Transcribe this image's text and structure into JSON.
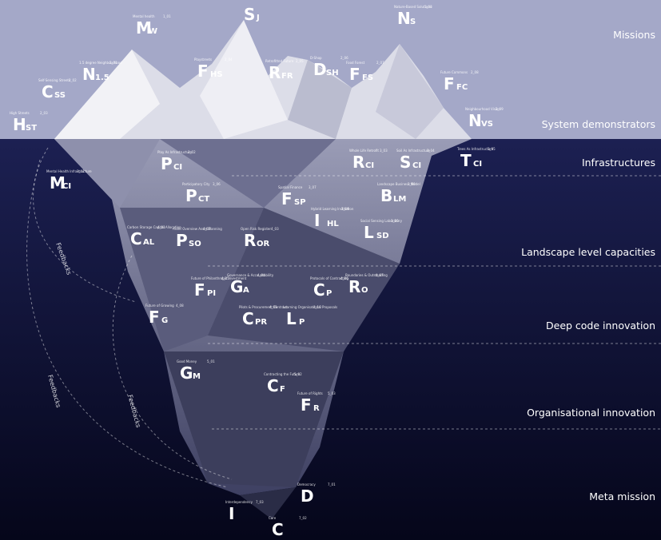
{
  "layers": [
    "Missions",
    "System demonstrators",
    "Infrastructures",
    "Landscape level capacities",
    "Deep code innovation",
    "Organisational innovation",
    "Meta mission"
  ],
  "feedbacks": [
    "Feedbacks",
    "Feedbacks",
    "Feedbacks"
  ],
  "nodes": [
    {
      "sym": "M",
      "sub": "W",
      "label": "Mental health",
      "num": "1_01"
    },
    {
      "sym": "S",
      "sub": "J",
      "label": "",
      "num": ""
    },
    {
      "sym": "N",
      "sub": "S",
      "label": "Nature-Based Solutions",
      "num": "1_03"
    },
    {
      "sym": "N",
      "sub": "1.5",
      "label": "1.5 degree Neighbourhood",
      "num": "2_01"
    },
    {
      "sym": "C",
      "sub": "SS",
      "label": "Self-Sensing Streets",
      "num": "2_02"
    },
    {
      "sym": "H",
      "sub": "ST",
      "label": "High Streets",
      "num": "2_03"
    },
    {
      "sym": "F",
      "sub": "HS",
      "label": "Playstreets",
      "num": "2_04"
    },
    {
      "sym": "R",
      "sub": "FR",
      "label": "Retrofitted Future",
      "num": "2_05"
    },
    {
      "sym": "D",
      "sub": "SH",
      "label": "D-Shop",
      "num": "2_06"
    },
    {
      "sym": "F",
      "sub": "FS",
      "label": "Food Forest",
      "num": "2_07"
    },
    {
      "sym": "F",
      "sub": "FC",
      "label": "Future Commons",
      "num": "2_08"
    },
    {
      "sym": "N",
      "sub": "VS",
      "label": "Neighbourhood Vision",
      "num": "2_09"
    },
    {
      "sym": "M",
      "sub": "CI",
      "label": "Mental Health Infrastructure",
      "num": "3_01"
    },
    {
      "sym": "P",
      "sub": "CI",
      "label": "Play As Infrastructure",
      "num": "3_02"
    },
    {
      "sym": "R",
      "sub": "CI",
      "label": "Whole Life Retrofit",
      "num": "3_03"
    },
    {
      "sym": "S",
      "sub": "CI",
      "label": "Soil As Infrastructure",
      "num": "3_04"
    },
    {
      "sym": "T",
      "sub": "CI",
      "label": "Trees As Infrastructure",
      "num": "3_05"
    },
    {
      "sym": "P",
      "sub": "CT",
      "label": "Participatory City",
      "num": "3_06"
    },
    {
      "sym": "F",
      "sub": "SP",
      "label": "Spatial Finance",
      "num": "3_07"
    },
    {
      "sym": "B",
      "sub": "LM",
      "label": "Landscape Business Model",
      "num": "3_08"
    },
    {
      "sym": "I",
      "sub": "HL",
      "label": "Hybrid Learning Institution",
      "num": "3_09"
    },
    {
      "sym": "L",
      "sub": "SD",
      "label": "Social Sensing Laboratory",
      "num": "3_10"
    },
    {
      "sym": "C",
      "sub": "AL",
      "label": "Carbon Storage Capital Allocation",
      "num": "4_01"
    },
    {
      "sym": "P",
      "sub": "SO",
      "label": "Asset Overview Asset Planning",
      "num": "4_02"
    },
    {
      "sym": "R",
      "sub": "OR",
      "label": "Open Risk Register",
      "num": "4_03"
    },
    {
      "sym": "G",
      "sub": "A",
      "label": "Governance & Accountability",
      "num": "4_04"
    },
    {
      "sym": "F",
      "sub": "PI",
      "label": "Future of Philanthropic Investment",
      "num": "4_05"
    },
    {
      "sym": "C",
      "sub": "P",
      "label": "Protocols of Contracting",
      "num": "4_06"
    },
    {
      "sym": "R",
      "sub": "O",
      "label": "Boundaries & Outstanding",
      "num": "4_07"
    },
    {
      "sym": "F",
      "sub": "G",
      "label": "Future of Growing",
      "num": "4_08"
    },
    {
      "sym": "C",
      "sub": "PR",
      "label": "Pilots & Procurement Contract",
      "num": "4_09"
    },
    {
      "sym": "L",
      "sub": "P",
      "label": "Learning Organisational Proposals",
      "num": "4_10"
    },
    {
      "sym": "G",
      "sub": "M",
      "label": "Good Money",
      "num": "5_01"
    },
    {
      "sym": "C",
      "sub": "F",
      "label": "Contracting the Future",
      "num": "5_02"
    },
    {
      "sym": "F",
      "sub": "R",
      "label": "Future of Rights",
      "num": "5_03"
    },
    {
      "sym": "I",
      "sub": "",
      "label": "Interdependency",
      "num": "7_03"
    },
    {
      "sym": "D",
      "sub": "",
      "label": "Democracy",
      "num": "7_01"
    },
    {
      "sym": "C",
      "sub": "",
      "label": "Care",
      "num": "7_02"
    }
  ]
}
